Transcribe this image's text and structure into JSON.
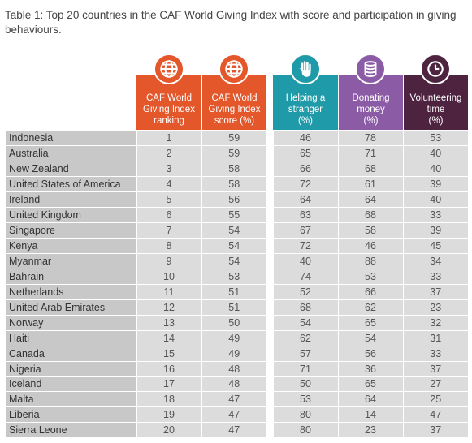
{
  "caption": "Table 1: Top 20 countries in the CAF World Giving Index with score and participation in giving behaviours.",
  "colors": {
    "caf_header": "#e3572b",
    "helping_header": "#1f9aa8",
    "donating_header": "#8b5ba6",
    "volunteering_header": "#4e2340",
    "country_cell": "#c8c8c8",
    "value_cell": "#dcdcdc"
  },
  "headers": {
    "ranking": "CAF World\nGiving Index\nranking",
    "score": "CAF World\nGiving Index\nscore (%)",
    "helping": "Helping a\nstranger\n(%)",
    "donating": "Donating\nmoney\n(%)",
    "volunteering": "Volunteering\ntime\n(%)"
  },
  "icons": {
    "ranking": "globe-icon",
    "score": "globe-icon",
    "helping": "hand-icon",
    "donating": "coins-icon",
    "volunteering": "clock-icon"
  },
  "rows": [
    {
      "country": "Indonesia",
      "rank": "1",
      "score": "59",
      "helping": "46",
      "donating": "78",
      "volunteering": "53"
    },
    {
      "country": "Australia",
      "rank": "2",
      "score": "59",
      "helping": "65",
      "donating": "71",
      "volunteering": "40"
    },
    {
      "country": "New Zealand",
      "rank": "3",
      "score": "58",
      "helping": "66",
      "donating": "68",
      "volunteering": "40"
    },
    {
      "country": "United States of America",
      "rank": "4",
      "score": "58",
      "helping": "72",
      "donating": "61",
      "volunteering": "39"
    },
    {
      "country": "Ireland",
      "rank": "5",
      "score": "56",
      "helping": "64",
      "donating": "64",
      "volunteering": "40"
    },
    {
      "country": "United Kingdom",
      "rank": "6",
      "score": "55",
      "helping": "63",
      "donating": "68",
      "volunteering": "33"
    },
    {
      "country": "Singapore",
      "rank": "7",
      "score": "54",
      "helping": "67",
      "donating": "58",
      "volunteering": "39"
    },
    {
      "country": "Kenya",
      "rank": "8",
      "score": "54",
      "helping": "72",
      "donating": "46",
      "volunteering": "45"
    },
    {
      "country": "Myanmar",
      "rank": "9",
      "score": "54",
      "helping": "40",
      "donating": "88",
      "volunteering": "34"
    },
    {
      "country": "Bahrain",
      "rank": "10",
      "score": "53",
      "helping": "74",
      "donating": "53",
      "volunteering": "33"
    },
    {
      "country": "Netherlands",
      "rank": "11",
      "score": "51",
      "helping": "52",
      "donating": "66",
      "volunteering": "37"
    },
    {
      "country": "United Arab Emirates",
      "rank": "12",
      "score": "51",
      "helping": "68",
      "donating": "62",
      "volunteering": "23"
    },
    {
      "country": "Norway",
      "rank": "13",
      "score": "50",
      "helping": "54",
      "donating": "65",
      "volunteering": "32"
    },
    {
      "country": "Haiti",
      "rank": "14",
      "score": "49",
      "helping": "62",
      "donating": "54",
      "volunteering": "31"
    },
    {
      "country": "Canada",
      "rank": "15",
      "score": "49",
      "helping": "57",
      "donating": "56",
      "volunteering": "33"
    },
    {
      "country": "Nigeria",
      "rank": "16",
      "score": "48",
      "helping": "71",
      "donating": "36",
      "volunteering": "37"
    },
    {
      "country": "Iceland",
      "rank": "17",
      "score": "48",
      "helping": "50",
      "donating": "65",
      "volunteering": "27"
    },
    {
      "country": "Malta",
      "rank": "18",
      "score": "47",
      "helping": "53",
      "donating": "64",
      "volunteering": "25"
    },
    {
      "country": "Liberia",
      "rank": "19",
      "score": "47",
      "helping": "80",
      "donating": "14",
      "volunteering": "47"
    },
    {
      "country": "Sierra Leone",
      "rank": "20",
      "score": "47",
      "helping": "80",
      "donating": "23",
      "volunteering": "37"
    }
  ]
}
